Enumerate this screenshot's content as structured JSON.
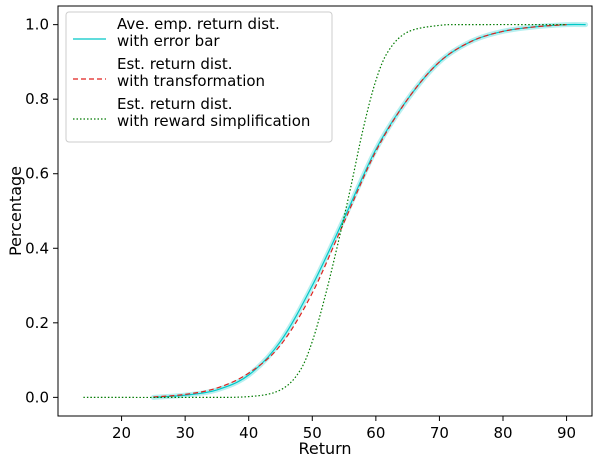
{
  "chart_data": {
    "type": "line",
    "xlabel": "Return",
    "ylabel": "Percentage",
    "xlim": [
      10,
      94
    ],
    "ylim": [
      -0.05,
      1.05
    ],
    "xticks": [
      20,
      30,
      40,
      50,
      60,
      70,
      80,
      90
    ],
    "yticks": [
      0.0,
      0.2,
      0.4,
      0.6,
      0.8,
      1.0
    ],
    "grid": false,
    "legend_position": "top-left",
    "series": [
      {
        "name": "Ave. emp. return dist.\nwith error bar",
        "color": "#00c8c8",
        "style": "solid",
        "x": [
          25,
          30,
          35,
          40,
          45,
          50,
          55,
          60,
          65,
          70,
          75,
          80,
          85,
          90,
          93
        ],
        "y": [
          0.0,
          0.006,
          0.02,
          0.06,
          0.15,
          0.3,
          0.48,
          0.665,
          0.8,
          0.9,
          0.955,
          0.982,
          0.994,
          1.0,
          1.0
        ]
      },
      {
        "name": "Est. return dist.\nwith transformation",
        "color": "#e0221e",
        "style": "dashed",
        "x": [
          25,
          30,
          35,
          40,
          45,
          50,
          55,
          60,
          65,
          70,
          75,
          80,
          85,
          90
        ],
        "y": [
          0.001,
          0.008,
          0.025,
          0.065,
          0.14,
          0.28,
          0.47,
          0.66,
          0.8,
          0.9,
          0.955,
          0.982,
          0.994,
          1.0
        ]
      },
      {
        "name": "Est. return dist.\nwith reward simplification",
        "color": "#007a00",
        "style": "dotted",
        "x": [
          14,
          30,
          40,
          45,
          48,
          50,
          52,
          54,
          56,
          58,
          60,
          62,
          65,
          70,
          75,
          90
        ],
        "y": [
          0.0,
          0.0,
          0.002,
          0.02,
          0.07,
          0.15,
          0.27,
          0.41,
          0.56,
          0.72,
          0.85,
          0.93,
          0.98,
          0.998,
          1.0,
          1.0
        ]
      }
    ]
  }
}
